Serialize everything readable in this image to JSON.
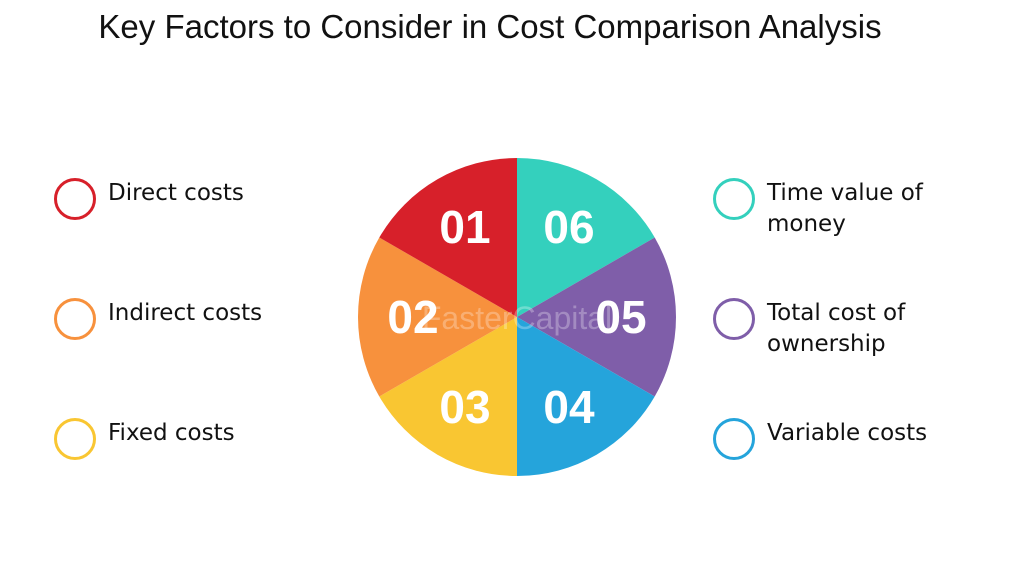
{
  "title": "Key Factors to Consider in Cost Comparison Analysis",
  "watermark": "FasterCapital",
  "segments": [
    {
      "number": "01",
      "label": "Direct costs",
      "color": "#d7202a"
    },
    {
      "number": "02",
      "label": "Indirect costs",
      "color": "#f7913d"
    },
    {
      "number": "03",
      "label": "Fixed costs",
      "color": "#f9c632"
    },
    {
      "number": "04",
      "label": "Variable costs",
      "color": "#25a4db"
    },
    {
      "number": "05",
      "label": "Total cost of\nownership",
      "color": "#7f5ea9"
    },
    {
      "number": "06",
      "label": "Time value of\nmoney",
      "color": "#34d0bd"
    }
  ]
}
